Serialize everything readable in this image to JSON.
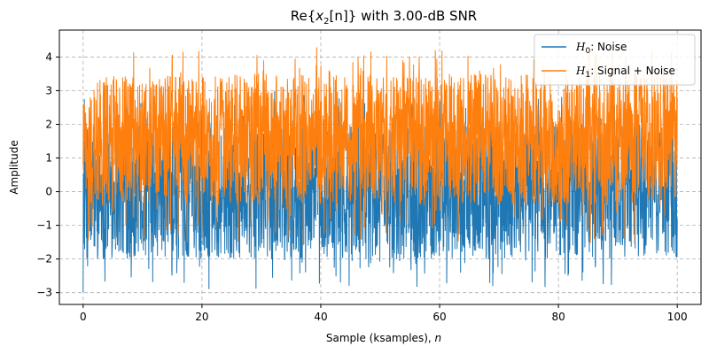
{
  "chart_data": {
    "type": "line",
    "title_prefix": "Re{",
    "title_var": "x",
    "title_sub": "2",
    "title_arg": "[n]",
    "title_suffix": "} with 3.00-dB SNR",
    "xlabel": "Sample (ksamples), ",
    "xlabel_var": "n",
    "ylabel": "Amplitude",
    "xlim": [
      -4,
      104
    ],
    "ylim": [
      -3.35,
      4.8
    ],
    "xticks": [
      0,
      20,
      40,
      60,
      80,
      100
    ],
    "yticks": [
      -3,
      -2,
      -1,
      0,
      1,
      2,
      3,
      4
    ],
    "grid": true,
    "legend_position": "top-right",
    "series": [
      {
        "name_symbol": "H",
        "name_sub": "0",
        "name_text": ": Noise",
        "color": "#1f77b4",
        "x_range": [
          0,
          100
        ],
        "typical_band": [
          -2.0,
          2.0
        ],
        "extreme_range": [
          -3.0,
          3.0
        ]
      },
      {
        "name_symbol": "H",
        "name_sub": "1",
        "name_text": ": Signal + Noise",
        "color": "#ff7f0e",
        "x_range": [
          0,
          100
        ],
        "typical_band": [
          -0.4,
          3.5
        ],
        "extreme_range": [
          -1.6,
          4.3
        ]
      }
    ]
  }
}
